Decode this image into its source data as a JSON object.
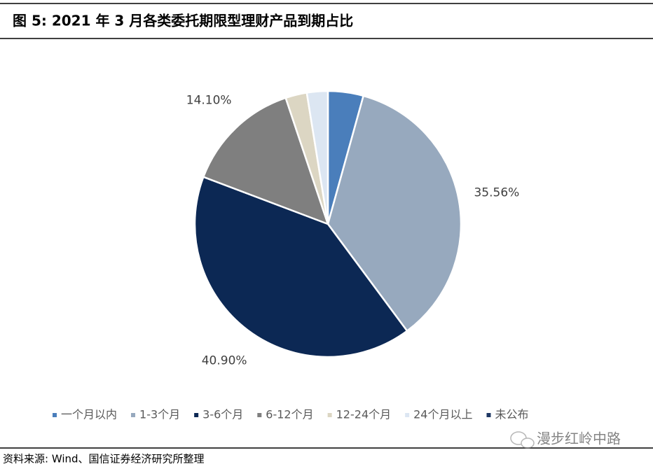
{
  "header": {
    "title": "图 5:  2021 年 3 月各类委托期限型理财产品到期占比"
  },
  "chart_data": {
    "type": "pie",
    "categories": [
      "一个月以内",
      "1-3个月",
      "3-6个月",
      "6-12个月",
      "12-24个月",
      "24个月以上",
      "未公布"
    ],
    "values": [
      4.3,
      35.56,
      40.9,
      14.1,
      2.6,
      2.54,
      0
    ],
    "value_labels": [
      null,
      "35.56%",
      "40.90%",
      "14.10%",
      null,
      null,
      null
    ],
    "colors": [
      "#4a7ebb",
      "#97a9be",
      "#0c2854",
      "#7f7f7f",
      "#dcd6c3",
      "#dce6f2",
      "#1f3864"
    ],
    "legend": "bottom"
  },
  "footer": {
    "source": "资料来源: Wind、国信证券经济研究所整理",
    "watermark": "漫步红岭中路"
  }
}
